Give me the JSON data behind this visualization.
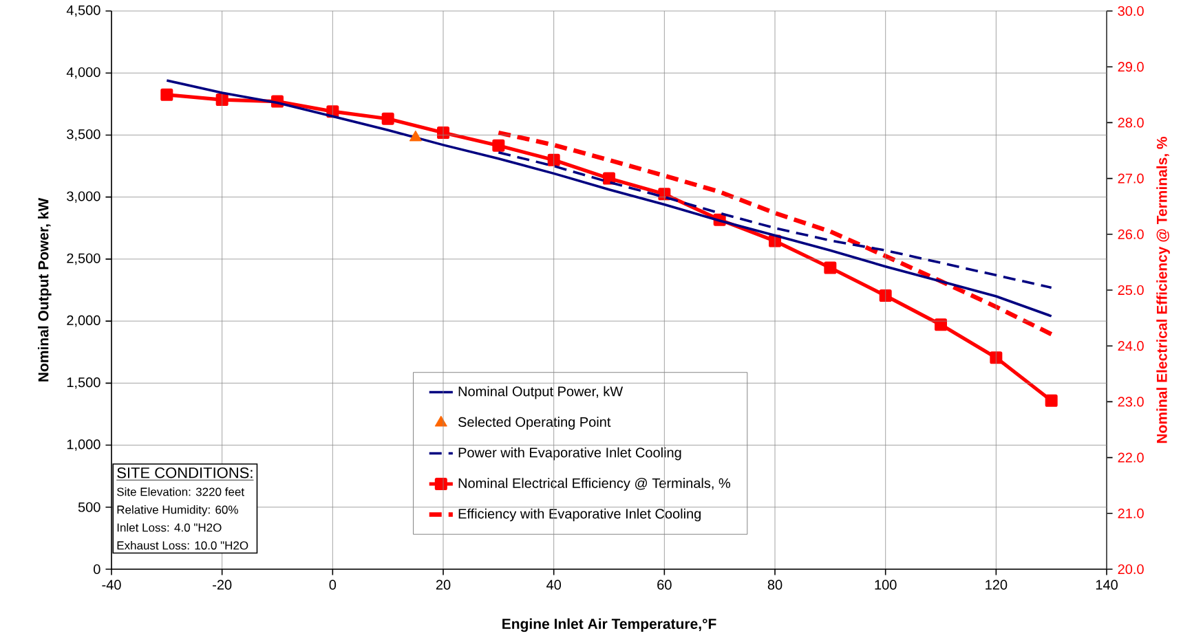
{
  "chart_data": {
    "type": "line",
    "xlabel": "Engine Inlet Air Temperature,°F",
    "ylabel": "Nominal Output Power, kW",
    "y2label": "Nominal Electrical Efficiency @ Terminals, %",
    "xlim": [
      -40,
      140
    ],
    "xticks": [
      -40,
      -20,
      0,
      20,
      40,
      60,
      80,
      100,
      120,
      140
    ],
    "ylim": [
      0,
      4500
    ],
    "yticks": [
      0,
      500,
      {
        "value": 1000,
        "label": "1,000"
      },
      {
        "value": 1500,
        "label": "1,500"
      },
      {
        "value": 2000,
        "label": "2,000"
      },
      {
        "value": 2500,
        "label": "2,500"
      },
      {
        "value": 3000,
        "label": "3,000"
      },
      {
        "value": 3500,
        "label": "3,500"
      },
      {
        "value": 4000,
        "label": "4,000"
      },
      {
        "value": 4500,
        "label": "4,500"
      }
    ],
    "y2lim": [
      20,
      30
    ],
    "y2ticks": [
      {
        "value": 20,
        "label": "20.0"
      },
      {
        "value": 21,
        "label": "21.0"
      },
      {
        "value": 22,
        "label": "22.0"
      },
      {
        "value": 23,
        "label": "23.0"
      },
      {
        "value": 24,
        "label": "24.0"
      },
      {
        "value": 25,
        "label": "25.0"
      },
      {
        "value": 26,
        "label": "26.0"
      },
      {
        "value": 27,
        "label": "27.0"
      },
      {
        "value": 28,
        "label": "28.0"
      },
      {
        "value": 29,
        "label": "29.0"
      },
      {
        "value": 30,
        "label": "30.0"
      }
    ],
    "grid": true,
    "legend": "bottom",
    "series": [
      {
        "name": "Nominal Output Power, kW",
        "color": "#000080",
        "marker": "none",
        "line_style": "solid",
        "x": [
          -30,
          -20,
          -10,
          0,
          10,
          20,
          30,
          40,
          50,
          60,
          70,
          80,
          90,
          100,
          110,
          120,
          130
        ],
        "values": [
          3940,
          3840,
          3760,
          3650,
          3540,
          3420,
          3310,
          3190,
          3060,
          2940,
          2810,
          2690,
          2570,
          2440,
          2320,
          2200,
          2040
        ]
      },
      {
        "name": "Selected Operating Point",
        "type": "scatter",
        "color": "#ff6600",
        "marker": "triangle",
        "x": [
          15
        ],
        "values": [
          3480
        ]
      },
      {
        "name": "Power with Evaporative Inlet Cooling",
        "color": "#000080",
        "marker": "none",
        "line_style": "dashed",
        "x": [
          30,
          40,
          50,
          60,
          70,
          80,
          90,
          100,
          110,
          120,
          130
        ],
        "values": [
          3360,
          3250,
          3120,
          3000,
          2870,
          2750,
          2650,
          2570,
          2470,
          2370,
          2270
        ]
      },
      {
        "name": "Nominal Electrical Efficiency @ Terminals, %",
        "color": "#ff0000",
        "marker": "square",
        "line_style": "solid",
        "axis": "y2",
        "x": [
          -30,
          -20,
          -10,
          0,
          10,
          20,
          30,
          40,
          50,
          60,
          70,
          80,
          90,
          100,
          110,
          120,
          130
        ],
        "values": [
          28.5,
          28.41,
          28.38,
          28.2,
          28.07,
          27.82,
          27.59,
          27.33,
          27.0,
          26.72,
          26.26,
          25.88,
          25.4,
          24.9,
          24.38,
          23.79,
          23.02
        ]
      },
      {
        "name": "Efficiency with Evaporative Inlet Cooling",
        "color": "#ff0000",
        "marker": "none",
        "line_style": "dashed",
        "axis": "y2",
        "x": [
          30,
          40,
          50,
          60,
          70,
          80,
          90,
          100,
          110,
          120,
          130
        ],
        "values": [
          27.82,
          27.6,
          27.33,
          27.05,
          26.76,
          26.38,
          26.05,
          25.61,
          25.16,
          24.7,
          24.21
        ]
      }
    ],
    "annotations": [
      "SITE CONDITIONS:",
      "Site Elevation: 3220 feet",
      "Relative Humidity: 60%",
      "Inlet Loss: 4.0 \"H2O",
      "Exhaust Loss: 10.0 \"H2O"
    ]
  }
}
